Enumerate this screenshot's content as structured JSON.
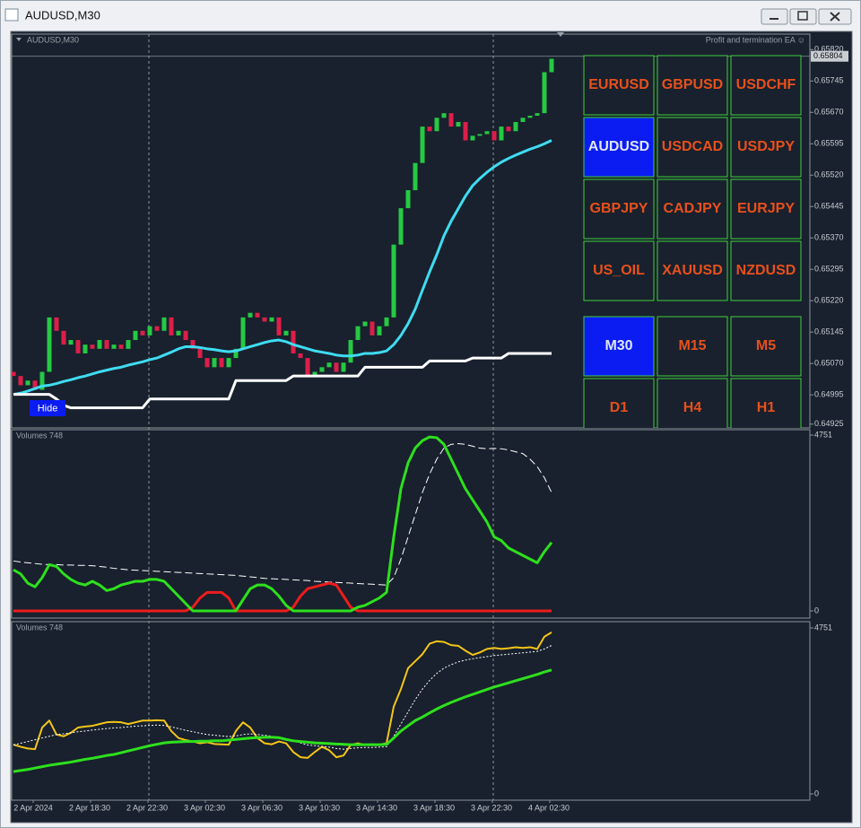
{
  "window": {
    "title": "AUDUSD,M30"
  },
  "time_axis": {
    "labels": [
      "2 Apr 2024",
      "2 Apr 18:30",
      "2 Apr 22:30",
      "3 Apr 02:30",
      "3 Apr 06:30",
      "3 Apr 10:30",
      "3 Apr 14:30",
      "3 Apr 18:30",
      "3 Apr 22:30",
      "4 Apr 02:30"
    ]
  },
  "panel": {
    "symbols": [
      {
        "label": "EURUSD"
      },
      {
        "label": "GBPUSD"
      },
      {
        "label": "USDCHF"
      },
      {
        "label": "AUDUSD",
        "active": true
      },
      {
        "label": "USDCAD"
      },
      {
        "label": "USDJPY"
      },
      {
        "label": "GBPJPY"
      },
      {
        "label": "CADJPY"
      },
      {
        "label": "EURJPY"
      },
      {
        "label": "US_OIL"
      },
      {
        "label": "XAUUSD"
      },
      {
        "label": "NZDUSD"
      }
    ],
    "timeframes": [
      {
        "label": "M30",
        "active": true
      },
      {
        "label": "M15"
      },
      {
        "label": "M5"
      },
      {
        "label": "D1"
      },
      {
        "label": "H4"
      },
      {
        "label": "H1"
      }
    ],
    "hide": "Hide"
  },
  "chart_data": [
    {
      "type": "candlestick",
      "label": "AUDUSD,M30",
      "ea_label": "Profit and termination EA ☺",
      "ylim": [
        0.64916,
        0.65857
      ],
      "yticks": [
        {
          "value": 0.6582,
          "label": "0.65820"
        },
        0.65745,
        {
          "value": 0.6567,
          "label": "0.65670"
        },
        0.65595,
        {
          "value": 0.6552,
          "label": "0.65520"
        },
        0.65445,
        {
          "value": 0.6537,
          "label": "0.65370"
        },
        0.65295,
        {
          "value": 0.6522,
          "label": "0.65220"
        },
        0.65145,
        {
          "value": 0.6507,
          "label": "0.65070"
        },
        0.64995,
        0.64925
      ],
      "last_price": 0.65804,
      "up_color": "#26c943",
      "down_color": "#dc1f4a",
      "open": [
        0.6505,
        0.6504,
        0.65018,
        0.65029,
        0.65007,
        0.6505,
        0.6518,
        0.65148,
        0.65115,
        0.65126,
        0.65094,
        0.65115,
        0.65105,
        0.65126,
        0.65105,
        0.65115,
        0.65105,
        0.65126,
        0.65148,
        0.65137,
        0.65159,
        0.65148,
        0.6518,
        0.65137,
        0.65148,
        0.65126,
        0.65105,
        0.65083,
        0.65061,
        0.65083,
        0.65061,
        0.65083,
        0.65105,
        0.6518,
        0.65191,
        0.6518,
        0.6517,
        0.6518,
        0.65137,
        0.65148,
        0.65094,
        0.65083,
        0.6504,
        0.6505,
        0.65061,
        0.65072,
        0.6505,
        0.65072,
        0.65126,
        0.65159,
        0.6517,
        0.65137,
        0.65159,
        0.6518,
        0.65354,
        0.65441,
        0.65484,
        0.65549,
        0.65636,
        0.65625,
        0.65657,
        0.65668,
        0.65636,
        0.65647,
        0.65603,
        0.65614,
        0.65618,
        0.65625,
        0.65603,
        0.65636,
        0.65625,
        0.65647,
        0.65657,
        0.65662,
        0.65668,
        0.65766
      ],
      "close": [
        0.6504,
        0.65018,
        0.65029,
        0.65007,
        0.6505,
        0.6518,
        0.65148,
        0.65115,
        0.65126,
        0.65094,
        0.65115,
        0.65105,
        0.65126,
        0.65105,
        0.65115,
        0.65105,
        0.65126,
        0.65148,
        0.65137,
        0.65159,
        0.65148,
        0.6518,
        0.65137,
        0.65148,
        0.65126,
        0.65105,
        0.65083,
        0.65061,
        0.65083,
        0.65061,
        0.65083,
        0.65105,
        0.6518,
        0.65191,
        0.6518,
        0.6517,
        0.6518,
        0.65137,
        0.65148,
        0.65094,
        0.65083,
        0.6504,
        0.6505,
        0.65061,
        0.65072,
        0.6505,
        0.65072,
        0.65126,
        0.65159,
        0.6517,
        0.65137,
        0.65159,
        0.6518,
        0.65354,
        0.65441,
        0.65484,
        0.65549,
        0.65636,
        0.65625,
        0.65657,
        0.65668,
        0.65636,
        0.65647,
        0.65603,
        0.65614,
        0.65618,
        0.65625,
        0.65603,
        0.65636,
        0.65625,
        0.65647,
        0.65657,
        0.65662,
        0.65668,
        0.65766,
        0.65798
      ],
      "lines": [
        {
          "color": "#3fdcf2",
          "width": 3,
          "values": [
            0.64996,
            0.64999,
            0.65004,
            0.6501,
            0.65016,
            0.65018,
            0.65022,
            0.65027,
            0.65031,
            0.65036,
            0.6504,
            0.65045,
            0.6505,
            0.65054,
            0.65058,
            0.65061,
            0.65066,
            0.6507,
            0.65074,
            0.65079,
            0.65083,
            0.6509,
            0.65097,
            0.65105,
            0.6511,
            0.6511,
            0.65108,
            0.65105,
            0.65103,
            0.651,
            0.65098,
            0.651,
            0.65105,
            0.6511,
            0.65115,
            0.6512,
            0.65124,
            0.65126,
            0.65122,
            0.65115,
            0.6511,
            0.65105,
            0.651,
            0.65097,
            0.65094,
            0.6509,
            0.65088,
            0.65088,
            0.6509,
            0.65094,
            0.65094,
            0.65096,
            0.651,
            0.65115,
            0.65137,
            0.65165,
            0.652,
            0.65245,
            0.65289,
            0.6533,
            0.65375,
            0.6541,
            0.6544,
            0.6547,
            0.65495,
            0.65512,
            0.65527,
            0.6554,
            0.65551,
            0.6556,
            0.65568,
            0.65575,
            0.65582,
            0.65588,
            0.65595,
            0.65603
          ]
        },
        {
          "color": "#ffffff",
          "width": 3,
          "values": [
            0.64996,
            0.64996,
            0.64996,
            0.64996,
            0.64996,
            0.64996,
            0.64985,
            0.6497,
            0.64964,
            0.64964,
            0.64964,
            0.64964,
            0.64964,
            0.64964,
            0.64964,
            0.64964,
            0.64964,
            0.64964,
            0.64964,
            0.64985,
            0.64985,
            0.64985,
            0.64985,
            0.64985,
            0.64985,
            0.64985,
            0.64985,
            0.64985,
            0.64985,
            0.64985,
            0.64985,
            0.65029,
            0.65029,
            0.65029,
            0.65029,
            0.65029,
            0.65029,
            0.65029,
            0.65029,
            0.6504,
            0.6504,
            0.6504,
            0.6504,
            0.6504,
            0.6504,
            0.6504,
            0.6504,
            0.6504,
            0.6504,
            0.65061,
            0.65061,
            0.65061,
            0.65061,
            0.65061,
            0.65061,
            0.65061,
            0.65061,
            0.65061,
            0.65076,
            0.65076,
            0.65076,
            0.65076,
            0.65076,
            0.65076,
            0.65083,
            0.65083,
            0.65083,
            0.65083,
            0.65083,
            0.65094,
            0.65094,
            0.65094,
            0.65094,
            0.65094,
            0.65094,
            0.65094
          ]
        }
      ]
    },
    {
      "type": "line",
      "label": "Volumes 748",
      "ylim": [
        0,
        4751
      ],
      "yticks": [
        4751,
        0
      ],
      "lines": [
        {
          "color": "#ffffff",
          "width": 1,
          "style": "dashed",
          "values": [
            1350,
            1320,
            1300,
            1280,
            1260,
            1250,
            1250,
            1240,
            1240,
            1230,
            1230,
            1220,
            1200,
            1180,
            1150,
            1130,
            1110,
            1100,
            1090,
            1080,
            1070,
            1060,
            1050,
            1040,
            1030,
            1020,
            1010,
            1000,
            990,
            980,
            970,
            960,
            940,
            920,
            900,
            880,
            870,
            860,
            850,
            840,
            830,
            820,
            800,
            790,
            780,
            770,
            760,
            750,
            740,
            730,
            720,
            710,
            700,
            900,
            1400,
            2000,
            2600,
            3200,
            3700,
            4100,
            4400,
            4500,
            4520,
            4500,
            4450,
            4400,
            4380,
            4390,
            4380,
            4350,
            4300,
            4250,
            4100,
            3900,
            3600,
            3200
          ]
        },
        {
          "color": "#ee1c1c",
          "width": 3,
          "style": "solid",
          "values": [
            0,
            0,
            0,
            0,
            0,
            0,
            0,
            0,
            0,
            0,
            0,
            0,
            0,
            0,
            0,
            0,
            0,
            0,
            0,
            0,
            0,
            0,
            0,
            0,
            0,
            100,
            350,
            500,
            500,
            500,
            350,
            0,
            0,
            0,
            0,
            0,
            0,
            0,
            0,
            100,
            400,
            600,
            650,
            700,
            750,
            700,
            400,
            100,
            0,
            0,
            0,
            0,
            0,
            0,
            0,
            0,
            0,
            0,
            0,
            0,
            0,
            0,
            0,
            0,
            0,
            0,
            0,
            0,
            0,
            0,
            0,
            0,
            0,
            0,
            0,
            0
          ]
        },
        {
          "color": "#2ee01e",
          "width": 3,
          "style": "solid",
          "values": [
            1110,
            1000,
            750,
            650,
            900,
            1250,
            1200,
            1000,
            850,
            750,
            700,
            800,
            700,
            550,
            600,
            700,
            750,
            800,
            800,
            850,
            850,
            800,
            600,
            400,
            200,
            0,
            0,
            0,
            0,
            0,
            0,
            0,
            300,
            600,
            700,
            700,
            600,
            400,
            150,
            0,
            0,
            0,
            0,
            0,
            0,
            0,
            0,
            0,
            100,
            150,
            250,
            350,
            500,
            2000,
            3300,
            4000,
            4400,
            4600,
            4700,
            4680,
            4500,
            4100,
            3700,
            3300,
            3000,
            2700,
            2400,
            2000,
            1900,
            1700,
            1600,
            1500,
            1400,
            1300,
            1600,
            1850
          ]
        }
      ]
    },
    {
      "type": "line",
      "label": "Volumes 748",
      "ylim": [
        0,
        4751
      ],
      "yticks": [
        4751,
        0
      ],
      "lines": [
        {
          "color": "#f5c518",
          "width": 2,
          "style": "solid",
          "values": [
            1410,
            1350,
            1300,
            1280,
            1900,
            2100,
            1700,
            1650,
            1750,
            1900,
            1930,
            1950,
            2000,
            2050,
            2060,
            2050,
            2000,
            2050,
            2100,
            2100,
            2110,
            2100,
            1800,
            1600,
            1540,
            1500,
            1450,
            1480,
            1430,
            1420,
            1410,
            1800,
            2050,
            1900,
            1600,
            1450,
            1420,
            1500,
            1450,
            1200,
            1050,
            1030,
            1200,
            1350,
            1250,
            1050,
            1100,
            1400,
            1450,
            1400,
            1420,
            1410,
            1450,
            2500,
            3000,
            3600,
            3800,
            4000,
            4300,
            4370,
            4350,
            4260,
            4240,
            4100,
            3980,
            4050,
            4150,
            4180,
            4150,
            4170,
            4200,
            4180,
            4200,
            4150,
            4500,
            4625
          ]
        },
        {
          "color": "#ffffff",
          "width": 1,
          "style": "dotted",
          "values": [
            1400,
            1450,
            1500,
            1550,
            1600,
            1650,
            1700,
            1720,
            1750,
            1780,
            1800,
            1830,
            1850,
            1870,
            1890,
            1900,
            1920,
            1940,
            1950,
            1960,
            1970,
            1960,
            1920,
            1870,
            1820,
            1780,
            1740,
            1700,
            1680,
            1660,
            1640,
            1660,
            1700,
            1720,
            1700,
            1680,
            1650,
            1620,
            1580,
            1520,
            1460,
            1400,
            1380,
            1360,
            1340,
            1300,
            1280,
            1300,
            1320,
            1330,
            1330,
            1340,
            1350,
            1650,
            2000,
            2350,
            2700,
            3000,
            3250,
            3450,
            3600,
            3700,
            3780,
            3830,
            3870,
            3900,
            3930,
            3960,
            3980,
            4000,
            4020,
            4040,
            4060,
            4080,
            4150,
            4250
          ]
        },
        {
          "color": "#2ee01e",
          "width": 3,
          "style": "solid",
          "values": [
            640,
            670,
            700,
            740,
            780,
            820,
            850,
            880,
            910,
            950,
            990,
            1020,
            1060,
            1100,
            1130,
            1180,
            1230,
            1280,
            1330,
            1380,
            1420,
            1460,
            1480,
            1490,
            1500,
            1500,
            1510,
            1510,
            1520,
            1520,
            1540,
            1560,
            1580,
            1600,
            1610,
            1620,
            1620,
            1610,
            1560,
            1520,
            1500,
            1480,
            1460,
            1450,
            1440,
            1430,
            1420,
            1410,
            1410,
            1410,
            1410,
            1410,
            1420,
            1600,
            1800,
            1950,
            2100,
            2200,
            2320,
            2430,
            2530,
            2620,
            2700,
            2780,
            2850,
            2920,
            2990,
            3060,
            3120,
            3180,
            3240,
            3300,
            3360,
            3420,
            3490,
            3550
          ]
        }
      ]
    }
  ]
}
